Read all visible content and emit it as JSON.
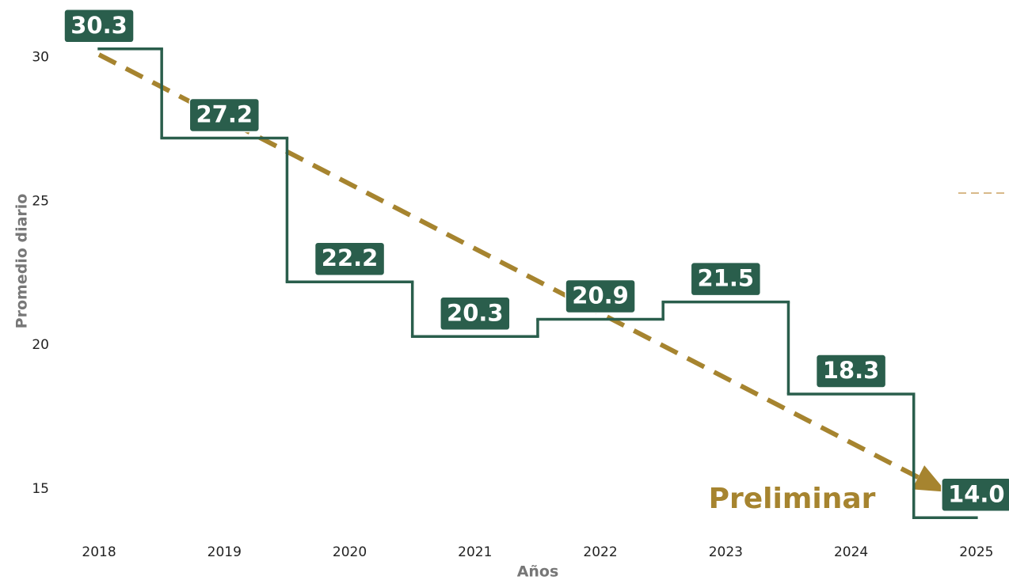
{
  "chart_data": {
    "type": "step",
    "x": [
      2018,
      2019,
      2020,
      2021,
      2022,
      2023,
      2024,
      2025
    ],
    "series": [
      {
        "color": "#2a5e4c",
        "values": [
          30.3,
          27.2,
          22.2,
          20.3,
          20.9,
          21.5,
          18.3,
          14.0
        ],
        "value_labels": [
          "30.3",
          "27.2",
          "22.2",
          "20.3",
          "20.9",
          "21.5",
          "18.3",
          "14.0"
        ]
      }
    ],
    "trend": {
      "x": [
        2018,
        2024.76
      ],
      "values": [
        30.1,
        14.9
      ],
      "color": "#a6842f"
    },
    "xlim": [
      2017.21,
      2025.26
    ],
    "xticks": [
      2018,
      2019,
      2020,
      2021,
      2022,
      2023,
      2024,
      2025
    ],
    "ylim": [
      12,
      32
    ],
    "yticks": [
      15,
      20,
      25,
      30
    ],
    "xlabel": "Años",
    "ylabel": "Promedio diario",
    "annotation": "Preliminar"
  }
}
